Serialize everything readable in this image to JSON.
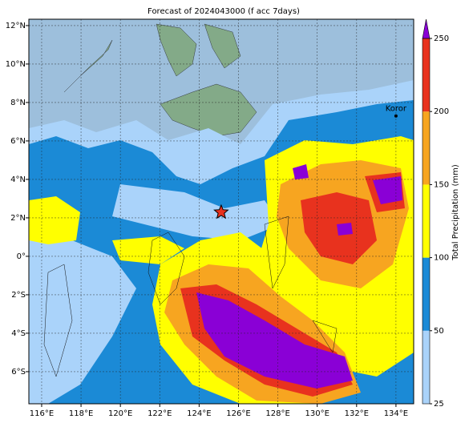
{
  "map": {
    "title": "Forecast of 2024043000 (f acc 7days)",
    "lonlim": [
      115.35,
      134.9
    ],
    "latlim": [
      -7.67,
      12.33
    ],
    "lonticks": [
      {
        "value": 116,
        "label": "116°E"
      },
      {
        "value": 118,
        "label": "118°E"
      },
      {
        "value": 120,
        "label": "120°E"
      },
      {
        "value": 122,
        "label": "122°E"
      },
      {
        "value": 124,
        "label": "124°E"
      },
      {
        "value": 126,
        "label": "126°E"
      },
      {
        "value": 128,
        "label": "128°E"
      },
      {
        "value": 130,
        "label": "130°E"
      },
      {
        "value": 132,
        "label": "132°E"
      },
      {
        "value": 134,
        "label": "134°E"
      }
    ],
    "latticks": [
      {
        "value": 12,
        "label": "12°N"
      },
      {
        "value": 10,
        "label": "10°N"
      },
      {
        "value": 8,
        "label": "8°N"
      },
      {
        "value": 6,
        "label": "6°N"
      },
      {
        "value": 4,
        "label": "4°N"
      },
      {
        "value": 2,
        "label": "2°N"
      },
      {
        "value": 0,
        "label": "0°"
      },
      {
        "value": -2,
        "label": "2°S"
      },
      {
        "value": -4,
        "label": "4°S"
      },
      {
        "value": -6,
        "label": "6°S"
      }
    ],
    "grid": true,
    "marker": {
      "lon": 125.12,
      "lat": 2.29
    },
    "places": [
      {
        "name": "Koror",
        "lon": 134.0,
        "lat": 7.3
      }
    ]
  },
  "colorbar": {
    "label": "Total Precipitation (mm)",
    "levels": [
      25,
      50,
      100,
      150,
      200,
      250
    ],
    "colors": [
      "#aad3fa",
      "#1b8ad6",
      "#ffff00",
      "#f7a520",
      "#e8321e"
    ],
    "over_color": "#8a00d6"
  }
}
